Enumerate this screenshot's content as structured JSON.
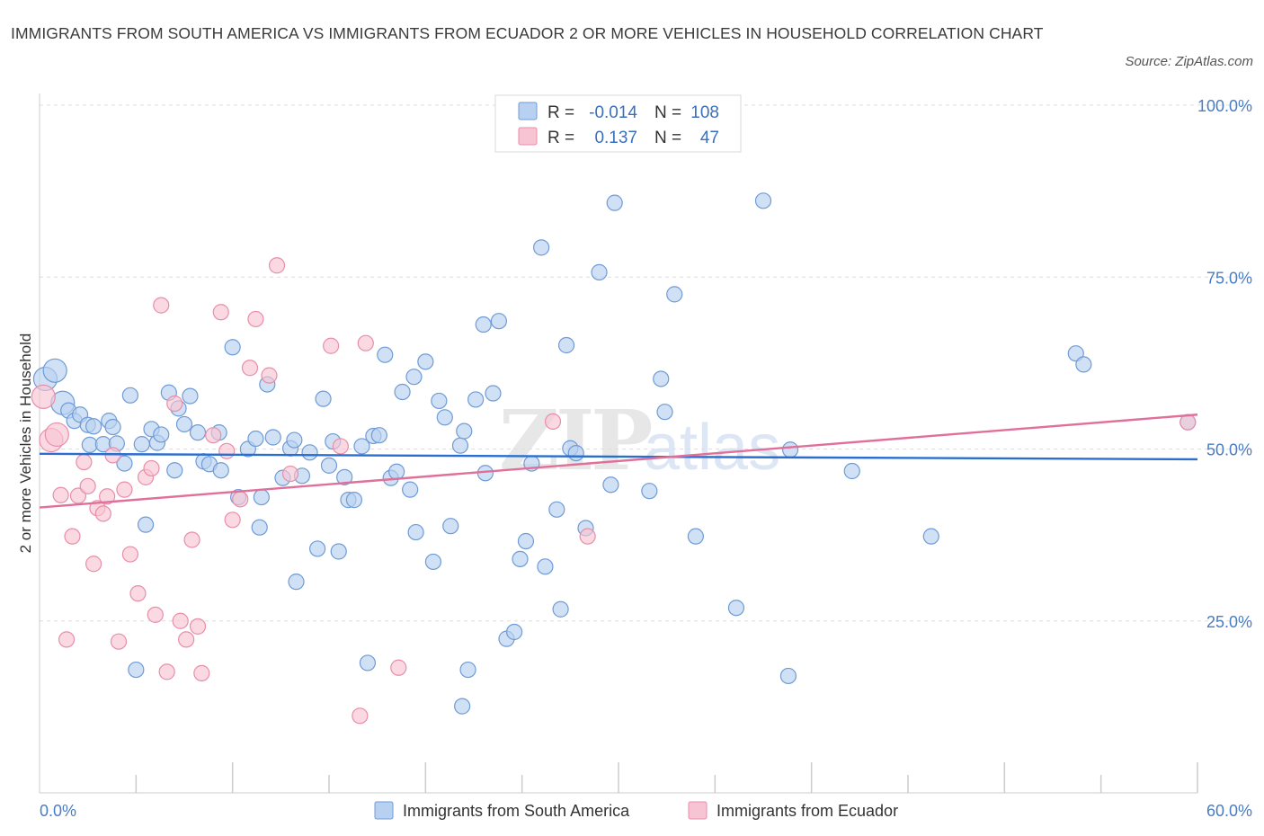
{
  "title": "IMMIGRANTS FROM SOUTH AMERICA VS IMMIGRANTS FROM ECUADOR 2 OR MORE VEHICLES IN HOUSEHOLD CORRELATION CHART",
  "source": "Source: ZipAtlas.com",
  "watermark": "ZIPatlas",
  "colors": {
    "blue_fill": "#b8d1f0",
    "blue_stroke": "#6f9bd6",
    "blue_line": "#2a6ed0",
    "pink_fill": "#f7c4d3",
    "pink_stroke": "#e88ea9",
    "pink_line": "#e0709a",
    "tick_text": "#4a7cc4",
    "grid": "#dedede"
  },
  "legend": {
    "rows": [
      {
        "r_label": "R =",
        "r_value": "-0.014",
        "n_label": "N =",
        "n_value": "108"
      },
      {
        "r_label": "R =",
        "r_value": "0.137",
        "n_label": "N =",
        "n_value": "47"
      }
    ]
  },
  "chart_data": {
    "type": "scatter",
    "title": "IMMIGRANTS FROM SOUTH AMERICA VS IMMIGRANTS FROM ECUADOR 2 OR MORE VEHICLES IN HOUSEHOLD CORRELATION CHART",
    "xlabel": "",
    "ylabel": "2 or more Vehicles in Household",
    "xlim": [
      0,
      60
    ],
    "ylim": [
      0,
      100
    ],
    "x_tick_labels": [
      "0.0%",
      "60.0%"
    ],
    "y_tick_labels": [
      "100.0%",
      "75.0%",
      "50.0%",
      "25.0%"
    ],
    "y_ticks": [
      100,
      75,
      50,
      25
    ],
    "grid": true,
    "legend_position": "top-center",
    "series": [
      {
        "name": "Immigrants from South America",
        "trend": [
          [
            0,
            49.3
          ],
          [
            60,
            48.5
          ]
        ],
        "points": [
          [
            0.3,
            60.2
          ],
          [
            0.8,
            61.4
          ],
          [
            1.2,
            56.7
          ],
          [
            1.5,
            55.6
          ],
          [
            1.8,
            54.1
          ],
          [
            2.1,
            55.0
          ],
          [
            2.5,
            53.5
          ],
          [
            2.6,
            50.6
          ],
          [
            2.8,
            53.3
          ],
          [
            3.3,
            50.7
          ],
          [
            3.6,
            54.1
          ],
          [
            3.8,
            53.2
          ],
          [
            4.0,
            50.8
          ],
          [
            4.4,
            47.9
          ],
          [
            4.7,
            57.8
          ],
          [
            5.0,
            17.9
          ],
          [
            5.3,
            50.7
          ],
          [
            5.5,
            39.0
          ],
          [
            5.8,
            52.9
          ],
          [
            6.1,
            50.9
          ],
          [
            6.3,
            52.1
          ],
          [
            6.7,
            58.2
          ],
          [
            7.0,
            46.9
          ],
          [
            7.2,
            55.9
          ],
          [
            7.5,
            53.6
          ],
          [
            7.8,
            57.7
          ],
          [
            8.2,
            52.4
          ],
          [
            8.5,
            48.2
          ],
          [
            8.8,
            47.8
          ],
          [
            9.3,
            52.4
          ],
          [
            9.4,
            46.9
          ],
          [
            10.0,
            64.8
          ],
          [
            10.3,
            43.0
          ],
          [
            10.8,
            50.0
          ],
          [
            11.2,
            51.5
          ],
          [
            11.5,
            43.0
          ],
          [
            11.4,
            38.6
          ],
          [
            11.8,
            59.4
          ],
          [
            12.1,
            51.7
          ],
          [
            12.6,
            45.8
          ],
          [
            13.0,
            50.1
          ],
          [
            13.2,
            51.3
          ],
          [
            13.3,
            30.7
          ],
          [
            13.6,
            46.1
          ],
          [
            14.0,
            49.5
          ],
          [
            14.4,
            35.5
          ],
          [
            14.7,
            57.3
          ],
          [
            15.0,
            47.6
          ],
          [
            15.2,
            51.1
          ],
          [
            15.5,
            35.1
          ],
          [
            15.8,
            45.9
          ],
          [
            16.0,
            42.6
          ],
          [
            16.3,
            42.6
          ],
          [
            16.7,
            50.4
          ],
          [
            17.0,
            18.9
          ],
          [
            17.3,
            51.9
          ],
          [
            17.6,
            52.0
          ],
          [
            17.9,
            63.7
          ],
          [
            18.2,
            45.8
          ],
          [
            18.5,
            46.7
          ],
          [
            18.8,
            58.3
          ],
          [
            19.2,
            44.1
          ],
          [
            19.5,
            37.9
          ],
          [
            20.0,
            62.7
          ],
          [
            20.4,
            33.6
          ],
          [
            20.7,
            57.0
          ],
          [
            21.0,
            54.6
          ],
          [
            21.3,
            38.8
          ],
          [
            21.8,
            50.5
          ],
          [
            21.9,
            12.6
          ],
          [
            22.2,
            17.9
          ],
          [
            22.6,
            57.2
          ],
          [
            23.1,
            46.5
          ],
          [
            23.0,
            68.1
          ],
          [
            23.5,
            58.1
          ],
          [
            23.8,
            68.6
          ],
          [
            24.2,
            22.4
          ],
          [
            24.6,
            23.4
          ],
          [
            24.9,
            34.0
          ],
          [
            25.2,
            36.6
          ],
          [
            25.5,
            47.9
          ],
          [
            26.0,
            79.3
          ],
          [
            26.2,
            32.9
          ],
          [
            26.8,
            41.2
          ],
          [
            27.0,
            26.7
          ],
          [
            27.3,
            65.1
          ],
          [
            27.5,
            50.1
          ],
          [
            27.8,
            49.4
          ],
          [
            29.6,
            44.8
          ],
          [
            29.8,
            85.8
          ],
          [
            31.6,
            43.9
          ],
          [
            32.2,
            60.2
          ],
          [
            32.4,
            55.4
          ],
          [
            32.9,
            72.5
          ],
          [
            34.0,
            37.3
          ],
          [
            36.1,
            26.9
          ],
          [
            37.5,
            86.1
          ],
          [
            38.8,
            17.0
          ],
          [
            38.9,
            49.9
          ],
          [
            42.1,
            46.8
          ],
          [
            46.2,
            37.3
          ],
          [
            53.7,
            63.9
          ],
          [
            54.1,
            62.3
          ],
          [
            59.5,
            53.9
          ],
          [
            28.3,
            38.5
          ],
          [
            29.0,
            75.7
          ],
          [
            22.0,
            52.6
          ],
          [
            19.4,
            60.5
          ]
        ]
      },
      {
        "name": "Immigrants from Ecuador",
        "trend": [
          [
            0,
            41.5
          ],
          [
            60,
            55.0
          ]
        ],
        "points": [
          [
            0.2,
            57.6
          ],
          [
            0.6,
            51.3
          ],
          [
            0.9,
            52.1
          ],
          [
            1.1,
            43.3
          ],
          [
            1.4,
            22.3
          ],
          [
            1.7,
            37.3
          ],
          [
            2.0,
            43.2
          ],
          [
            2.3,
            48.1
          ],
          [
            2.5,
            44.6
          ],
          [
            2.8,
            33.3
          ],
          [
            3.0,
            41.4
          ],
          [
            3.3,
            40.6
          ],
          [
            3.5,
            43.1
          ],
          [
            3.8,
            49.1
          ],
          [
            4.1,
            22.0
          ],
          [
            4.4,
            44.1
          ],
          [
            4.7,
            34.7
          ],
          [
            5.1,
            29.0
          ],
          [
            5.5,
            45.9
          ],
          [
            5.8,
            47.2
          ],
          [
            6.0,
            25.9
          ],
          [
            6.3,
            70.9
          ],
          [
            6.6,
            17.6
          ],
          [
            7.0,
            56.6
          ],
          [
            7.3,
            25.0
          ],
          [
            7.6,
            22.3
          ],
          [
            7.9,
            36.8
          ],
          [
            8.2,
            24.2
          ],
          [
            8.4,
            17.4
          ],
          [
            9.0,
            52.0
          ],
          [
            9.4,
            69.9
          ],
          [
            9.7,
            49.7
          ],
          [
            10.0,
            39.7
          ],
          [
            10.4,
            42.7
          ],
          [
            10.9,
            61.8
          ],
          [
            11.2,
            68.9
          ],
          [
            11.9,
            60.7
          ],
          [
            12.3,
            76.7
          ],
          [
            13.0,
            46.4
          ],
          [
            15.1,
            65.0
          ],
          [
            15.6,
            50.4
          ],
          [
            16.6,
            11.2
          ],
          [
            16.9,
            65.4
          ],
          [
            18.6,
            18.2
          ],
          [
            26.6,
            54.0
          ],
          [
            28.4,
            37.3
          ],
          [
            59.5,
            53.9
          ]
        ]
      }
    ]
  },
  "bottom_legend": {
    "items": [
      {
        "label": "Immigrants from South America"
      },
      {
        "label": "Immigrants from Ecuador"
      }
    ]
  }
}
